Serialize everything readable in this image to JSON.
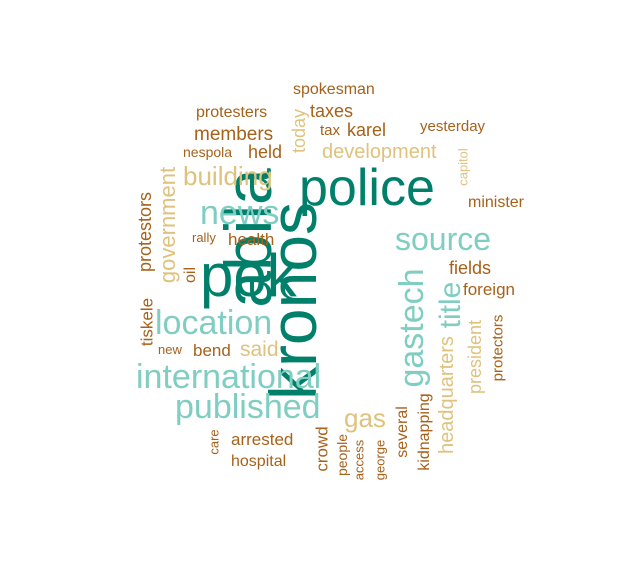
{
  "colors": {
    "dark_teal": "#00806B",
    "light_teal": "#80CDC1",
    "tan": "#DFC27D",
    "brown": "#A6611A"
  },
  "words": [
    {
      "text": "abila",
      "color": "dark_teal",
      "orientation": "vertical"
    },
    {
      "text": "kronos",
      "color": "dark_teal",
      "orientation": "vertical"
    },
    {
      "text": "pok",
      "color": "dark_teal",
      "orientation": "horizontal"
    },
    {
      "text": "police",
      "color": "dark_teal",
      "orientation": "horizontal"
    },
    {
      "text": "international",
      "color": "light_teal",
      "orientation": "horizontal"
    },
    {
      "text": "published",
      "color": "light_teal",
      "orientation": "horizontal"
    },
    {
      "text": "location",
      "color": "light_teal",
      "orientation": "horizontal"
    },
    {
      "text": "news",
      "color": "light_teal",
      "orientation": "horizontal"
    },
    {
      "text": "source",
      "color": "light_teal",
      "orientation": "horizontal"
    },
    {
      "text": "gastech",
      "color": "light_teal",
      "orientation": "vertical"
    },
    {
      "text": "title",
      "color": "light_teal",
      "orientation": "vertical"
    },
    {
      "text": "building",
      "color": "tan",
      "orientation": "horizontal"
    },
    {
      "text": "development",
      "color": "tan",
      "orientation": "horizontal"
    },
    {
      "text": "government",
      "color": "tan",
      "orientation": "vertical"
    },
    {
      "text": "said",
      "color": "tan",
      "orientation": "horizontal"
    },
    {
      "text": "gas",
      "color": "tan",
      "orientation": "horizontal"
    },
    {
      "text": "headquarters",
      "color": "tan",
      "orientation": "vertical"
    },
    {
      "text": "president",
      "color": "tan",
      "orientation": "vertical"
    },
    {
      "text": "today",
      "color": "tan",
      "orientation": "vertical"
    },
    {
      "text": "capitol",
      "color": "tan",
      "orientation": "vertical"
    },
    {
      "text": "spokesman",
      "color": "brown",
      "orientation": "horizontal"
    },
    {
      "text": "protesters",
      "color": "brown",
      "orientation": "horizontal"
    },
    {
      "text": "taxes",
      "color": "brown",
      "orientation": "horizontal"
    },
    {
      "text": "tax",
      "color": "brown",
      "orientation": "horizontal"
    },
    {
      "text": "karel",
      "color": "brown",
      "orientation": "horizontal"
    },
    {
      "text": "yesterday",
      "color": "brown",
      "orientation": "horizontal"
    },
    {
      "text": "members",
      "color": "brown",
      "orientation": "horizontal"
    },
    {
      "text": "nespola",
      "color": "brown",
      "orientation": "horizontal"
    },
    {
      "text": "held",
      "color": "brown",
      "orientation": "horizontal"
    },
    {
      "text": "minister",
      "color": "brown",
      "orientation": "horizontal"
    },
    {
      "text": "protestors",
      "color": "brown",
      "orientation": "vertical"
    },
    {
      "text": "rally",
      "color": "brown",
      "orientation": "horizontal"
    },
    {
      "text": "health",
      "color": "brown",
      "orientation": "horizontal"
    },
    {
      "text": "oil",
      "color": "brown",
      "orientation": "vertical"
    },
    {
      "text": "fields",
      "color": "brown",
      "orientation": "horizontal"
    },
    {
      "text": "foreign",
      "color": "brown",
      "orientation": "horizontal"
    },
    {
      "text": "tiskele",
      "color": "brown",
      "orientation": "vertical"
    },
    {
      "text": "new",
      "color": "brown",
      "orientation": "horizontal"
    },
    {
      "text": "bend",
      "color": "brown",
      "orientation": "horizontal"
    },
    {
      "text": "protectors",
      "color": "brown",
      "orientation": "vertical"
    },
    {
      "text": "care",
      "color": "brown",
      "orientation": "vertical"
    },
    {
      "text": "arrested",
      "color": "brown",
      "orientation": "horizontal"
    },
    {
      "text": "hospital",
      "color": "brown",
      "orientation": "horizontal"
    },
    {
      "text": "crowd",
      "color": "brown",
      "orientation": "vertical"
    },
    {
      "text": "people",
      "color": "brown",
      "orientation": "vertical"
    },
    {
      "text": "access",
      "color": "brown",
      "orientation": "vertical"
    },
    {
      "text": "george",
      "color": "brown",
      "orientation": "vertical"
    },
    {
      "text": "several",
      "color": "brown",
      "orientation": "vertical"
    },
    {
      "text": "kidnapping",
      "color": "brown",
      "orientation": "vertical"
    }
  ]
}
